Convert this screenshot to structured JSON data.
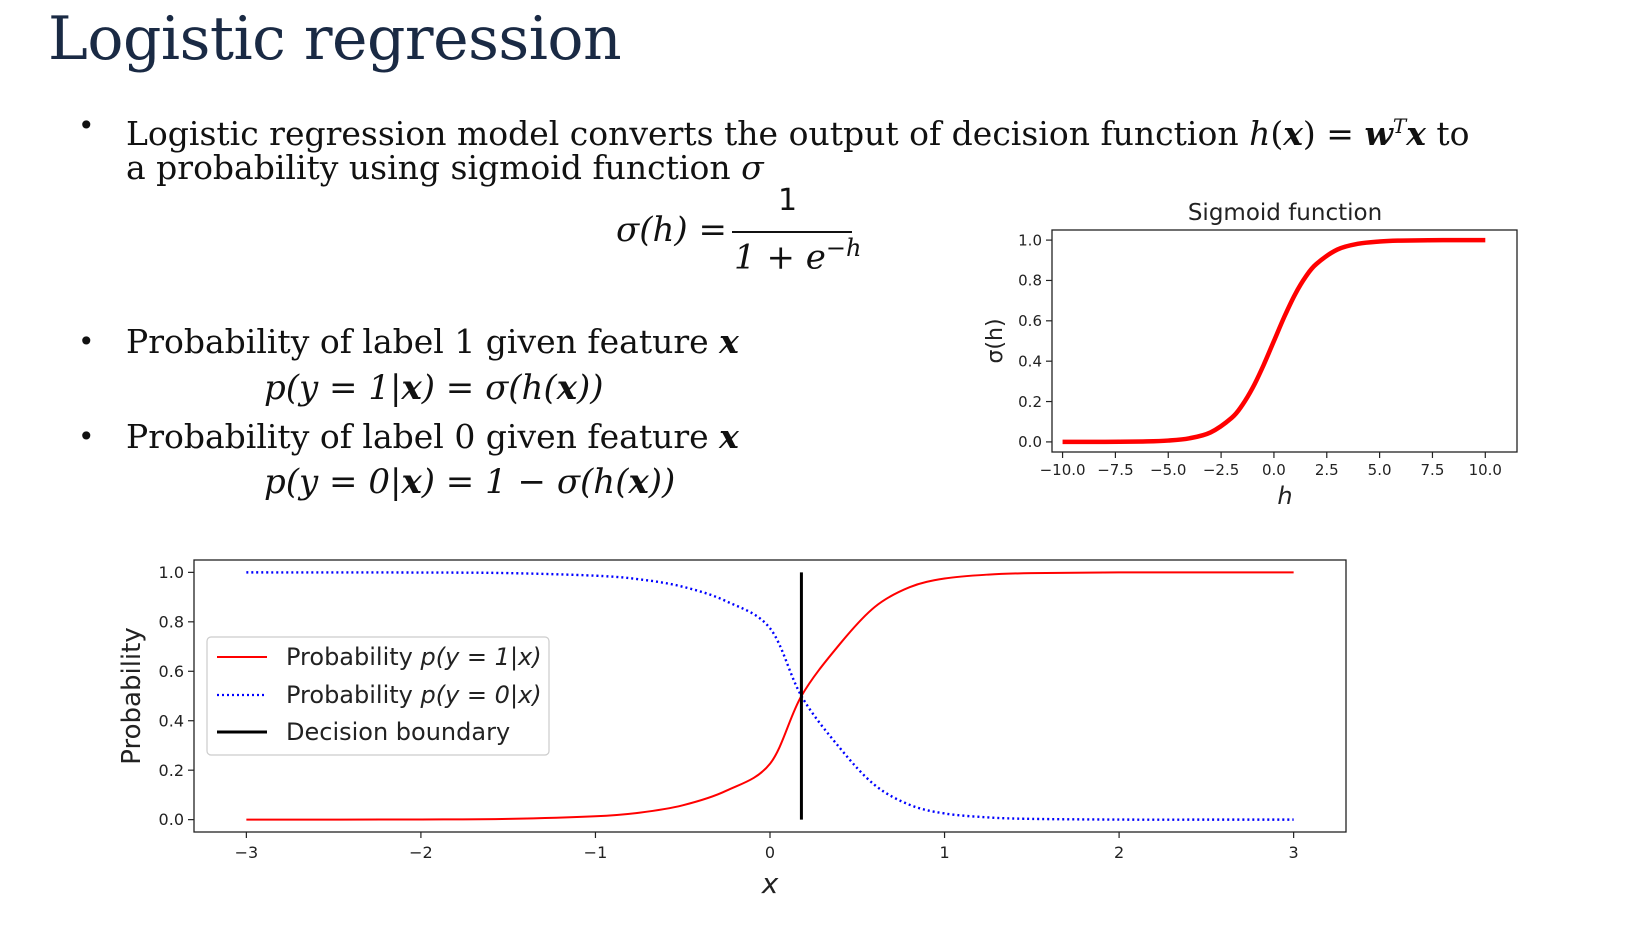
{
  "slide": {
    "title": "Logistic regression"
  },
  "bullets": {
    "b1_line1_prefix": "Logistic regression model converts the output of decision function ",
    "b1_line1_math_h": "h",
    "b1_line1_math_paren_open": "(",
    "b1_line1_math_x": "x",
    "b1_line1_math_paren_close": ")",
    "b1_line1_math_eq": " = ",
    "b1_line1_math_w": "w",
    "b1_line1_math_T": "T",
    "b1_line1_math_x2": "x",
    "b1_line1_suffix": " to",
    "b1_line2": "a probability using sigmoid function ",
    "b1_line2_sigma": "σ",
    "b2_prefix": "Probability of label 1 given feature ",
    "b2_x": "x",
    "b3_prefix": "Probability of label 0 given feature ",
    "b3_x": "x"
  },
  "formulas": {
    "sigmoid_lhs": "σ(h) =",
    "sigmoid_num": "1",
    "sigmoid_den_base": "1 + e",
    "sigmoid_den_exp": "−h",
    "p1_pre": "p(y = 1|",
    "p1_x": "x",
    "p1_post": ") = σ(h(",
    "p1_x2": "x",
    "p1_end": "))",
    "p0_pre": "p(y = 0|",
    "p0_x": "x",
    "p0_post": ") = 1 − σ(h(",
    "p0_x2": "x",
    "p0_end": "))"
  },
  "chart_data": [
    {
      "type": "line",
      "title": "Sigmoid function",
      "xlabel": "h",
      "ylabel": "σ(h)",
      "xlim": [
        -10.5,
        11.5
      ],
      "ylim": [
        -0.05,
        1.05
      ],
      "xticks": [
        -10.0,
        -7.5,
        -5.0,
        -2.5,
        0.0,
        2.5,
        5.0,
        7.5,
        10.0
      ],
      "xtick_labels": [
        "−10.0",
        "−7.5",
        "−5.0",
        "−2.5",
        "0.0",
        "2.5",
        "5.0",
        "7.5",
        "10.0"
      ],
      "yticks": [
        0.0,
        0.2,
        0.4,
        0.6,
        0.8,
        1.0
      ],
      "ytick_labels": [
        "0.0",
        "0.2",
        "0.4",
        "0.6",
        "0.8",
        "1.0"
      ],
      "grid": false,
      "series": [
        {
          "color": "#ff0000",
          "style": "solid",
          "x": [
            -10,
            -8,
            -6,
            -5,
            -4,
            -3,
            -2,
            -1.5,
            -1,
            -0.5,
            0,
            0.5,
            1,
            1.5,
            2,
            3,
            4,
            5,
            6,
            8,
            10
          ],
          "y": [
            5e-05,
            0.0003,
            0.0025,
            0.0067,
            0.018,
            0.047,
            0.119,
            0.182,
            0.269,
            0.378,
            0.5,
            0.622,
            0.731,
            0.818,
            0.881,
            0.953,
            0.982,
            0.993,
            0.9975,
            0.9997,
            0.99995
          ]
        }
      ]
    },
    {
      "type": "line",
      "title": "",
      "xlabel": "x",
      "ylabel": "Probability",
      "xlim": [
        -3.3,
        3.3
      ],
      "ylim": [
        -0.05,
        1.05
      ],
      "xticks": [
        -3,
        -2,
        -1,
        0,
        1,
        2,
        3
      ],
      "xtick_labels": [
        "−3",
        "−2",
        "−1",
        "0",
        "1",
        "2",
        "3"
      ],
      "yticks": [
        0.0,
        0.2,
        0.4,
        0.6,
        0.8,
        1.0
      ],
      "ytick_labels": [
        "0.0",
        "0.2",
        "0.4",
        "0.6",
        "0.8",
        "1.0"
      ],
      "grid": false,
      "legend": {
        "position": "center-left",
        "entries": [
          {
            "label_pre": "Probability ",
            "label_math": "p(y = 1|x)",
            "color": "#ff0000",
            "style": "solid"
          },
          {
            "label_pre": "Probability ",
            "label_math": "p(y = 0|x)",
            "color": "#0000ff",
            "style": "dotted"
          },
          {
            "label_pre": "Decision boundary",
            "label_math": "",
            "color": "#000000",
            "style": "solid"
          }
        ]
      },
      "series": [
        {
          "color": "#ff0000",
          "style": "solid",
          "x": [
            -3,
            -2,
            -1.5,
            -1,
            -0.75,
            -0.5,
            -0.25,
            0,
            0.18,
            0.4,
            0.6,
            0.8,
            1,
            1.25,
            1.5,
            2,
            2.5,
            3
          ],
          "y": [
            4e-05,
            0.0007,
            0.003,
            0.0135,
            0.028,
            0.058,
            0.117,
            0.226,
            0.5,
            0.71,
            0.86,
            0.94,
            0.975,
            0.991,
            0.997,
            0.9998,
            0.99998,
            1.0
          ]
        },
        {
          "color": "#0000ff",
          "style": "dotted",
          "x": [
            -3,
            -2,
            -1.5,
            -1,
            -0.75,
            -0.5,
            -0.25,
            0,
            0.18,
            0.4,
            0.6,
            0.8,
            1,
            1.25,
            1.5,
            2,
            2.5,
            3
          ],
          "y": [
            0.99996,
            0.9993,
            0.997,
            0.9865,
            0.972,
            0.942,
            0.883,
            0.774,
            0.5,
            0.29,
            0.14,
            0.06,
            0.025,
            0.009,
            0.003,
            0.0002,
            2e-05,
            0.0
          ]
        },
        {
          "color": "#000000",
          "style": "solid",
          "x": [
            0.18,
            0.18
          ],
          "y": [
            0.0,
            1.0
          ]
        }
      ]
    }
  ]
}
